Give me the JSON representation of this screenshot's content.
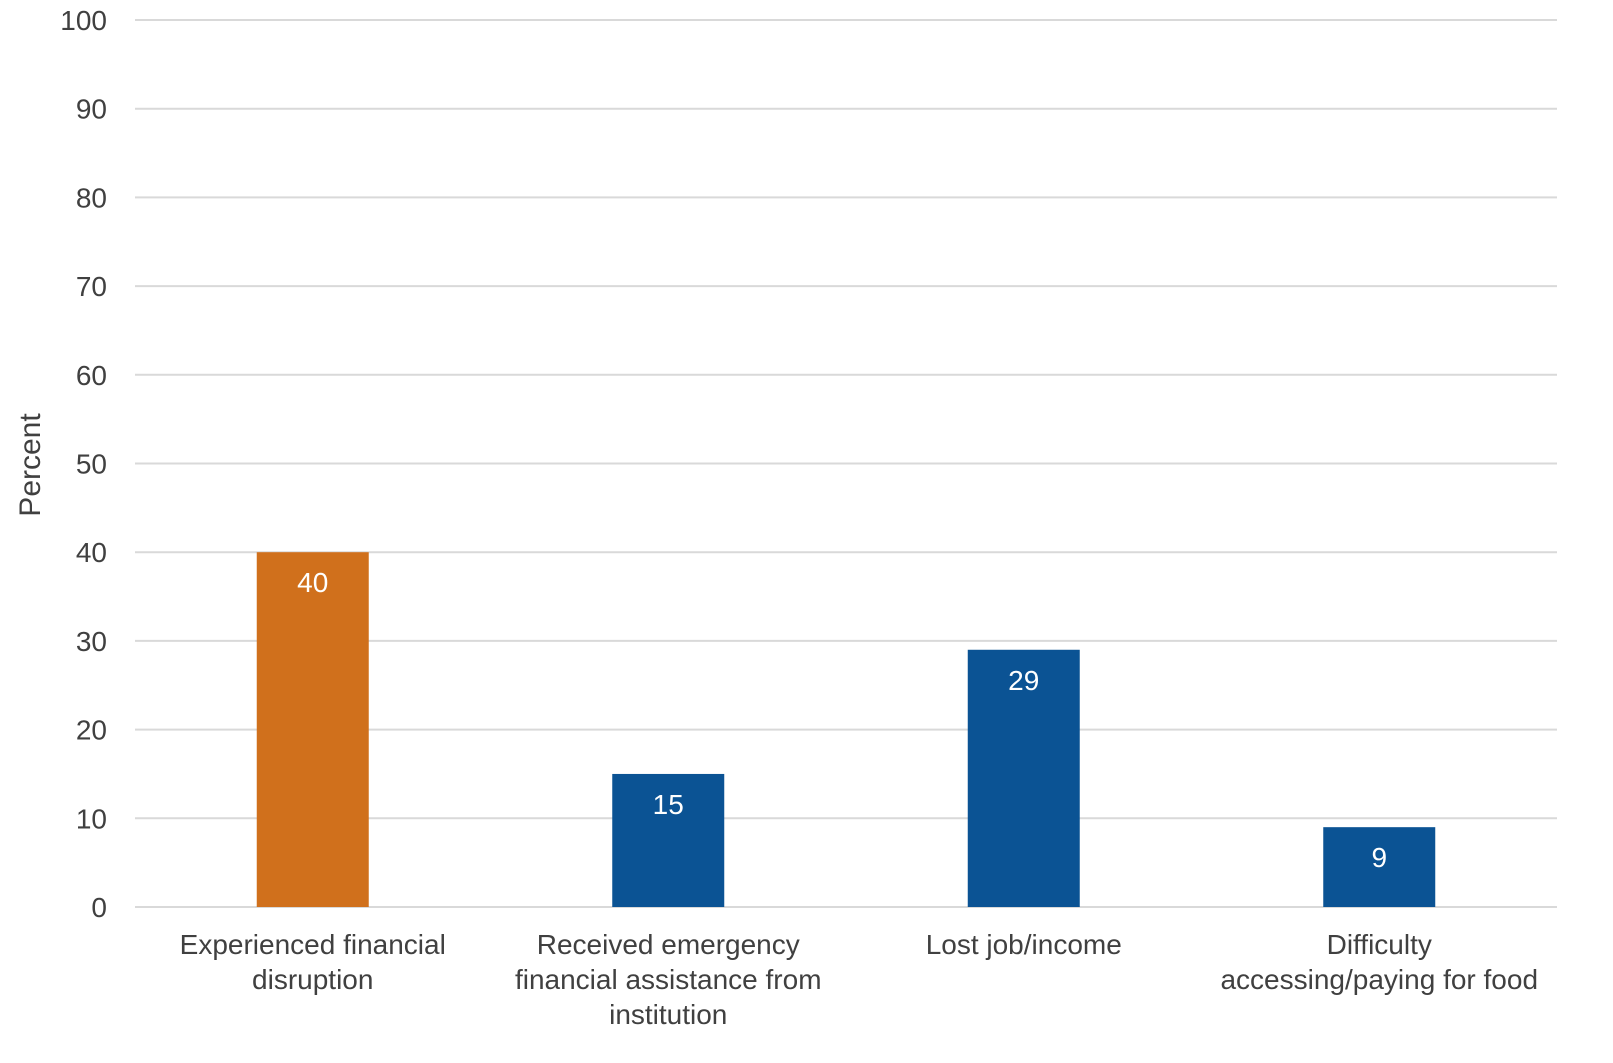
{
  "chart_data": {
    "type": "bar",
    "title": "",
    "xlabel": "",
    "ylabel": "Percent",
    "ylim": [
      0,
      100
    ],
    "yticks": [
      0,
      10,
      20,
      30,
      40,
      50,
      60,
      70,
      80,
      90,
      100
    ],
    "grid": true,
    "legend": "none",
    "categories": [
      [
        "Experienced financial",
        "disruption"
      ],
      [
        "Received emergency",
        "financial assistance from",
        "institution"
      ],
      [
        "Lost job/income"
      ],
      [
        "Difficulty",
        "accessing/paying for food"
      ]
    ],
    "values": [
      40,
      15,
      29,
      9
    ],
    "data_labels": [
      "40",
      "15",
      "29",
      "9"
    ],
    "bar_colors": [
      "#D0701C",
      "#0B5394",
      "#0B5394",
      "#0B5394"
    ],
    "grid_color": "#D9D9D9",
    "text_color": "#404040",
    "label_color": "#ffffff"
  }
}
